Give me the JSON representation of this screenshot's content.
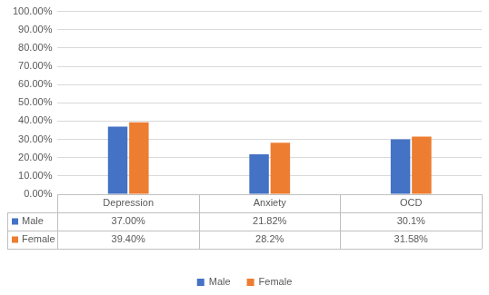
{
  "chart_data": {
    "type": "bar",
    "categories": [
      "Depression",
      "Anxiety",
      "OCD"
    ],
    "series": [
      {
        "name": "Male",
        "color": "#4472c4",
        "values": [
          37,
          21.82,
          30.1
        ],
        "value_labels": [
          "37.00%",
          "21.82%",
          "30.1%"
        ]
      },
      {
        "name": "Female",
        "color": "#ed7d31",
        "values": [
          39.4,
          28.2,
          31.58
        ],
        "value_labels": [
          "39.40%",
          "28.2%",
          "31.58%"
        ]
      }
    ],
    "ylim": [
      0,
      100
    ],
    "yticks": [
      {
        "value": 0,
        "label": "0.00%"
      },
      {
        "value": 10,
        "label": "10.00%"
      },
      {
        "value": 20,
        "label": "20.00%"
      },
      {
        "value": 30,
        "label": "30.00%"
      },
      {
        "value": 40,
        "label": "40.00%"
      },
      {
        "value": 50,
        "label": "50.00%"
      },
      {
        "value": 60,
        "label": "60.00%"
      },
      {
        "value": 70,
        "label": "70.00%"
      },
      {
        "value": 80,
        "label": "80.00%"
      },
      {
        "value": 90,
        "label": "90.00%"
      },
      {
        "value": 100,
        "label": "100.00%"
      }
    ],
    "grid": true,
    "data_labels": true,
    "legend": "bottom"
  }
}
